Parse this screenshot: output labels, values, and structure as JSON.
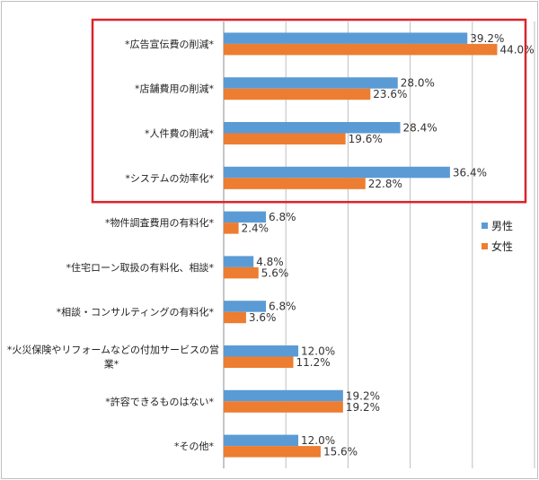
{
  "chart_data": {
    "type": "bar",
    "orientation": "horizontal",
    "title": "",
    "xlabel": "",
    "ylabel": "",
    "xlim": [
      0,
      50
    ],
    "grid": true,
    "legend_position": "right",
    "categories": [
      [
        "*広告宣伝費の削減*"
      ],
      [
        "*店舗費用の削減*"
      ],
      [
        "*人件費の削減*"
      ],
      [
        "*システムの効率化*"
      ],
      [
        "*物件調査費用の有料化*"
      ],
      [
        "*住宅ローン取扱の有料化、相談*"
      ],
      [
        "*相談・コンサルティングの有料化*"
      ],
      [
        "*火災保険やリフォームなどの付加サービスの営",
        "業*"
      ],
      [
        "*許容できるものはない*"
      ],
      [
        "*その他*"
      ]
    ],
    "series": [
      {
        "name": "男性",
        "color": "#5B9BD5",
        "values": [
          39.2,
          28.0,
          28.4,
          36.4,
          6.8,
          4.8,
          6.8,
          12.0,
          19.2,
          12.0
        ],
        "labels": [
          "39.2%",
          "28.0%",
          "28.4%",
          "36.4%",
          "6.8%",
          "4.8%",
          "6.8%",
          "12.0%",
          "19.2%",
          "12.0%"
        ]
      },
      {
        "name": "女性",
        "color": "#ED7D31",
        "values": [
          44.0,
          23.6,
          19.6,
          22.8,
          2.4,
          5.6,
          3.6,
          11.2,
          19.2,
          15.6
        ],
        "labels": [
          "44.0%",
          "23.6%",
          "19.6%",
          "22.8%",
          "2.4%",
          "5.6%",
          "3.6%",
          "11.2%",
          "19.2%",
          "15.6%"
        ]
      }
    ],
    "highlight": {
      "color": "#D9242B",
      "categories": [
        0,
        1,
        2,
        3
      ]
    }
  }
}
